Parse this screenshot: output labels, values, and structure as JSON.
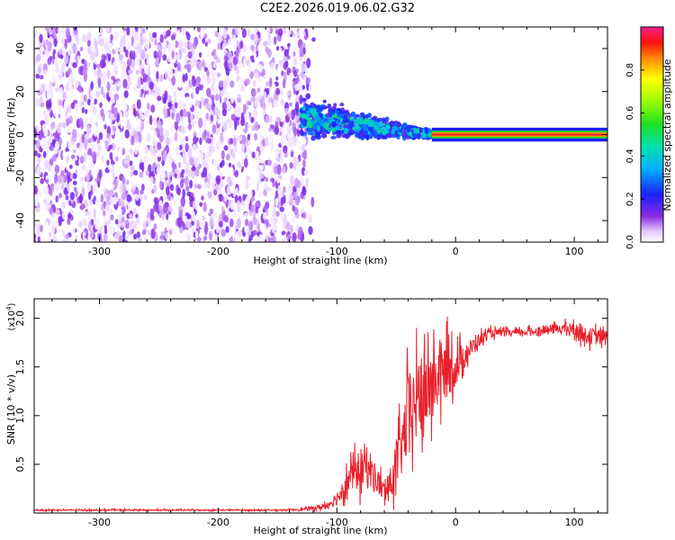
{
  "title": "C2E2.2026.019.06.02.G32",
  "colors": {
    "heat_low": "#7a1fd8",
    "heat_mid": "#1a5cff",
    "snr_line": "#e8202a",
    "axis": "#000000"
  },
  "chart_data": [
    {
      "type": "heatmap",
      "title": "",
      "xlabel": "Height of straight line (km)",
      "ylabel": "Frequency (Hz)",
      "xlim": [
        -355,
        128
      ],
      "ylim": [
        -50,
        50
      ],
      "x_ticks": [
        -300,
        -200,
        -100,
        0,
        100
      ],
      "y_ticks": [
        -40,
        -20,
        0,
        20,
        40
      ],
      "x_tick_labels": [
        "-300",
        "-200",
        "-100",
        "0",
        "100"
      ],
      "y_tick_labels": [
        "-40",
        "-20",
        "0",
        "20",
        "40"
      ],
      "colorbar": {
        "label": "Normalized spectral amplitude",
        "range": [
          0,
          1
        ],
        "ticks": [
          0.0,
          0.2,
          0.4,
          0.6,
          0.8
        ],
        "tick_labels": [
          "0.0",
          "0.2",
          "0.4",
          "0.6",
          "0.8"
        ]
      },
      "regions": [
        {
          "name": "noise",
          "x_range": [
            -355,
            -125
          ],
          "freq_range": [
            -50,
            50
          ],
          "amplitude": [
            0.0,
            0.12
          ]
        },
        {
          "name": "transition",
          "x_range": [
            -130,
            -20
          ],
          "center_freq_start": 8,
          "center_freq_end": 0,
          "amplitude": [
            0.15,
            0.5
          ]
        },
        {
          "name": "tone",
          "x_range": [
            -20,
            128
          ],
          "freq": 0,
          "amplitude": [
            0.8,
            1.0
          ]
        }
      ]
    },
    {
      "type": "line",
      "title": "",
      "xlabel": "Height of straight line (km)",
      "ylabel": "SNR (10 * v/v)",
      "scale_label": "(x10",
      "scale_exp": "4",
      "scale_close": ")",
      "xlim": [
        -355,
        128
      ],
      "ylim": [
        0,
        2.2
      ],
      "x_ticks": [
        -300,
        -200,
        -100,
        0,
        100
      ],
      "y_ticks": [
        0.5,
        1.0,
        1.5,
        2.0
      ],
      "x_tick_labels": [
        "-300",
        "-200",
        "-100",
        "0",
        "100"
      ],
      "y_tick_labels": [
        "0.5",
        "1.0",
        "1.5",
        "2.0"
      ],
      "series": [
        {
          "name": "SNR",
          "x": [
            -355,
            -300,
            -250,
            -200,
            -150,
            -125,
            -110,
            -100,
            -90,
            -80,
            -75,
            -70,
            -60,
            -55,
            -50,
            -45,
            -40,
            -30,
            -20,
            -15,
            -10,
            -5,
            0,
            10,
            20,
            30,
            50,
            70,
            90,
            100,
            110,
            128
          ],
          "y": [
            0.03,
            0.03,
            0.03,
            0.03,
            0.03,
            0.04,
            0.07,
            0.15,
            0.35,
            0.45,
            0.5,
            0.4,
            0.22,
            0.28,
            0.5,
            0.7,
            1.0,
            1.2,
            1.3,
            1.4,
            1.45,
            1.5,
            1.5,
            1.65,
            1.78,
            1.85,
            1.85,
            1.87,
            1.9,
            1.88,
            1.82,
            1.8
          ],
          "noise_amplitude": [
            0.01,
            0.01,
            0.01,
            0.01,
            0.01,
            0.02,
            0.05,
            0.1,
            0.2,
            0.3,
            0.35,
            0.25,
            0.15,
            0.25,
            0.35,
            0.45,
            0.6,
            0.6,
            0.55,
            0.5,
            0.45,
            0.4,
            0.3,
            0.15,
            0.1,
            0.06,
            0.05,
            0.06,
            0.08,
            0.1,
            0.12,
            0.12
          ]
        }
      ]
    }
  ]
}
